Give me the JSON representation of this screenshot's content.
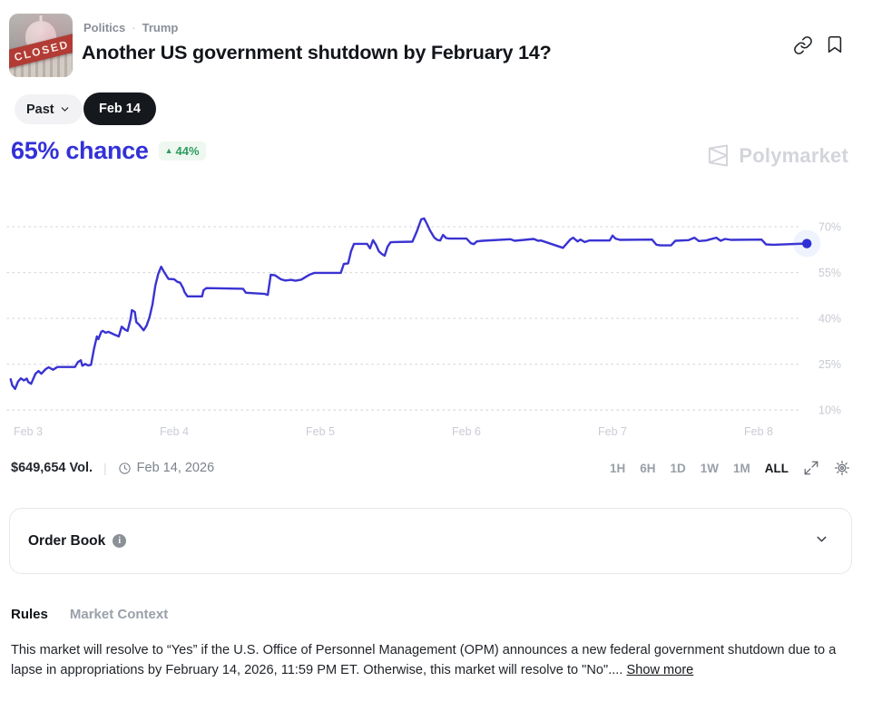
{
  "header": {
    "breadcrumb": {
      "category": "Politics",
      "separator": "·",
      "tag": "Trump"
    },
    "title": "Another US government shutdown by February 14?",
    "thumbnail": {
      "label": "CLOSED"
    }
  },
  "outcome_bar": {
    "past_label": "Past",
    "selected_outcome": "Feb 14"
  },
  "price": {
    "chance": "65% chance",
    "change": "44%",
    "change_direction": "up",
    "chance_color": "#3231d8",
    "change_color": "#2c9c5e"
  },
  "watermark": {
    "brand": "Polymarket"
  },
  "chart_data": {
    "type": "line",
    "title": "Probability of US government shutdown by February 14 (%)",
    "legend": "none",
    "grid": "dotted horizontal, labels on right",
    "ylim": [
      5,
      78
    ],
    "x_ticks": [
      {
        "day": 3,
        "label": "Feb 3"
      },
      {
        "day": 4,
        "label": "Feb 4"
      },
      {
        "day": 5,
        "label": "Feb 5"
      },
      {
        "day": 6,
        "label": "Feb 6"
      },
      {
        "day": 7,
        "label": "Feb 7"
      },
      {
        "day": 8,
        "label": "Feb 8"
      }
    ],
    "y_ticks": [
      {
        "pct": 70,
        "label": "70%"
      },
      {
        "pct": 55,
        "label": "55%"
      },
      {
        "pct": 40,
        "label": "40%"
      },
      {
        "pct": 25,
        "label": "25%"
      },
      {
        "pct": 10,
        "label": "10%"
      }
    ],
    "current_value_pct": 65,
    "series": [
      {
        "name": "Feb 14 Yes",
        "color": "#3a33d2",
        "dot_color": "#2f2fd8",
        "points": [
          [
            2.98,
            20.1
          ],
          [
            2.99,
            18.2
          ],
          [
            3.01,
            16.9
          ],
          [
            3.03,
            19.3
          ],
          [
            3.05,
            20.4
          ],
          [
            3.07,
            19.7
          ],
          [
            3.09,
            20.3
          ],
          [
            3.1,
            19.2
          ],
          [
            3.12,
            18.6
          ],
          [
            3.15,
            21.9
          ],
          [
            3.17,
            22.8
          ],
          [
            3.19,
            21.9
          ],
          [
            3.22,
            23.4
          ],
          [
            3.24,
            24.0
          ],
          [
            3.27,
            23.2
          ],
          [
            3.3,
            24.1
          ],
          [
            3.42,
            24.1
          ],
          [
            3.44,
            25.7
          ],
          [
            3.46,
            26.3
          ],
          [
            3.47,
            24.5
          ],
          [
            3.49,
            25.1
          ],
          [
            3.51,
            24.6
          ],
          [
            3.53,
            24.8
          ],
          [
            3.55,
            29.9
          ],
          [
            3.57,
            34.1
          ],
          [
            3.58,
            33.2
          ],
          [
            3.6,
            35.6
          ],
          [
            3.61,
            35.9
          ],
          [
            3.63,
            35.3
          ],
          [
            3.65,
            35.6
          ],
          [
            3.69,
            34.7
          ],
          [
            3.72,
            34.1
          ],
          [
            3.74,
            37.3
          ],
          [
            3.76,
            36.4
          ],
          [
            3.78,
            35.9
          ],
          [
            3.8,
            39.7
          ],
          [
            3.81,
            42.7
          ],
          [
            3.83,
            42.1
          ],
          [
            3.84,
            38.8
          ],
          [
            3.86,
            37.9
          ],
          [
            3.89,
            36.1
          ],
          [
            3.91,
            37.6
          ],
          [
            3.93,
            40.3
          ],
          [
            3.95,
            44.5
          ],
          [
            3.97,
            50.7
          ],
          [
            3.99,
            54.6
          ],
          [
            4.01,
            56.9
          ],
          [
            4.03,
            55.2
          ],
          [
            4.06,
            52.9
          ],
          [
            4.1,
            52.8
          ],
          [
            4.12,
            52.0
          ],
          [
            4.14,
            51.7
          ],
          [
            4.16,
            49.9
          ],
          [
            4.17,
            48.6
          ],
          [
            4.19,
            47.2
          ],
          [
            4.29,
            47.2
          ],
          [
            4.3,
            49.2
          ],
          [
            4.32,
            49.9
          ],
          [
            4.57,
            49.7
          ],
          [
            4.59,
            48.4
          ],
          [
            4.72,
            48.0
          ],
          [
            4.74,
            47.7
          ],
          [
            4.76,
            54.3
          ],
          [
            4.79,
            54.1
          ],
          [
            4.83,
            52.8
          ],
          [
            4.86,
            52.4
          ],
          [
            4.9,
            52.6
          ],
          [
            4.93,
            52.3
          ],
          [
            4.97,
            52.7
          ],
          [
            5.0,
            53.6
          ],
          [
            5.03,
            54.4
          ],
          [
            5.06,
            54.9
          ],
          [
            5.24,
            54.9
          ],
          [
            5.26,
            57.8
          ],
          [
            5.29,
            58.0
          ],
          [
            5.31,
            62.0
          ],
          [
            5.33,
            64.4
          ],
          [
            5.42,
            64.4
          ],
          [
            5.44,
            62.9
          ],
          [
            5.46,
            65.6
          ],
          [
            5.48,
            64.1
          ],
          [
            5.5,
            62.0
          ],
          [
            5.52,
            61.1
          ],
          [
            5.54,
            60.5
          ],
          [
            5.56,
            63.5
          ],
          [
            5.58,
            64.9
          ],
          [
            5.6,
            65.0
          ],
          [
            5.73,
            65.1
          ],
          [
            5.76,
            68.5
          ],
          [
            5.79,
            72.4
          ],
          [
            5.81,
            72.7
          ],
          [
            5.83,
            70.9
          ],
          [
            5.85,
            68.8
          ],
          [
            5.88,
            66.4
          ],
          [
            5.9,
            65.7
          ],
          [
            5.92,
            65.5
          ],
          [
            5.94,
            67.3
          ],
          [
            5.96,
            66.3
          ],
          [
            5.98,
            66.1
          ],
          [
            6.1,
            66.1
          ],
          [
            6.13,
            64.6
          ],
          [
            6.15,
            64.3
          ],
          [
            6.17,
            65.2
          ],
          [
            6.21,
            65.4
          ],
          [
            6.4,
            65.9
          ],
          [
            6.43,
            65.4
          ],
          [
            6.56,
            66.0
          ],
          [
            6.59,
            65.4
          ],
          [
            6.61,
            65.5
          ],
          [
            6.74,
            63.4
          ],
          [
            6.76,
            63.1
          ],
          [
            6.81,
            65.8
          ],
          [
            6.83,
            66.4
          ],
          [
            6.86,
            65.2
          ],
          [
            6.88,
            65.8
          ],
          [
            6.91,
            65.0
          ],
          [
            6.94,
            65.5
          ],
          [
            7.08,
            65.5
          ],
          [
            7.1,
            67.1
          ],
          [
            7.12,
            66.1
          ],
          [
            7.15,
            65.7
          ],
          [
            7.37,
            65.8
          ],
          [
            7.4,
            64.1
          ],
          [
            7.43,
            63.9
          ],
          [
            7.5,
            63.9
          ],
          [
            7.53,
            65.4
          ],
          [
            7.62,
            65.6
          ],
          [
            7.66,
            66.4
          ],
          [
            7.69,
            65.3
          ],
          [
            7.74,
            65.5
          ],
          [
            7.81,
            66.4
          ],
          [
            7.84,
            65.4
          ],
          [
            7.87,
            66.0
          ],
          [
            7.91,
            65.7
          ],
          [
            8.12,
            65.8
          ],
          [
            8.15,
            64.2
          ],
          [
            8.2,
            64.1
          ],
          [
            8.43,
            64.5
          ]
        ]
      }
    ]
  },
  "chart_footer": {
    "volume": "$649,654 Vol.",
    "divider": "|",
    "end_date": "Feb 14, 2026",
    "ranges": [
      "1H",
      "6H",
      "1D",
      "1W",
      "1M",
      "ALL"
    ],
    "selected_range": "ALL"
  },
  "order_book": {
    "title": "Order Book",
    "collapsed": true
  },
  "tabs": [
    {
      "label": "Rules",
      "active": true
    },
    {
      "label": "Market Context",
      "active": false
    }
  ],
  "rules": {
    "text": "This market will resolve to “Yes” if the U.S. Office of Personnel Management (OPM) announces a new federal government shutdown due to a lapse in appropriations by February 14, 2026, 11:59 PM ET. Otherwise, this market will resolve to \"No\"....",
    "show_more": "Show more"
  }
}
